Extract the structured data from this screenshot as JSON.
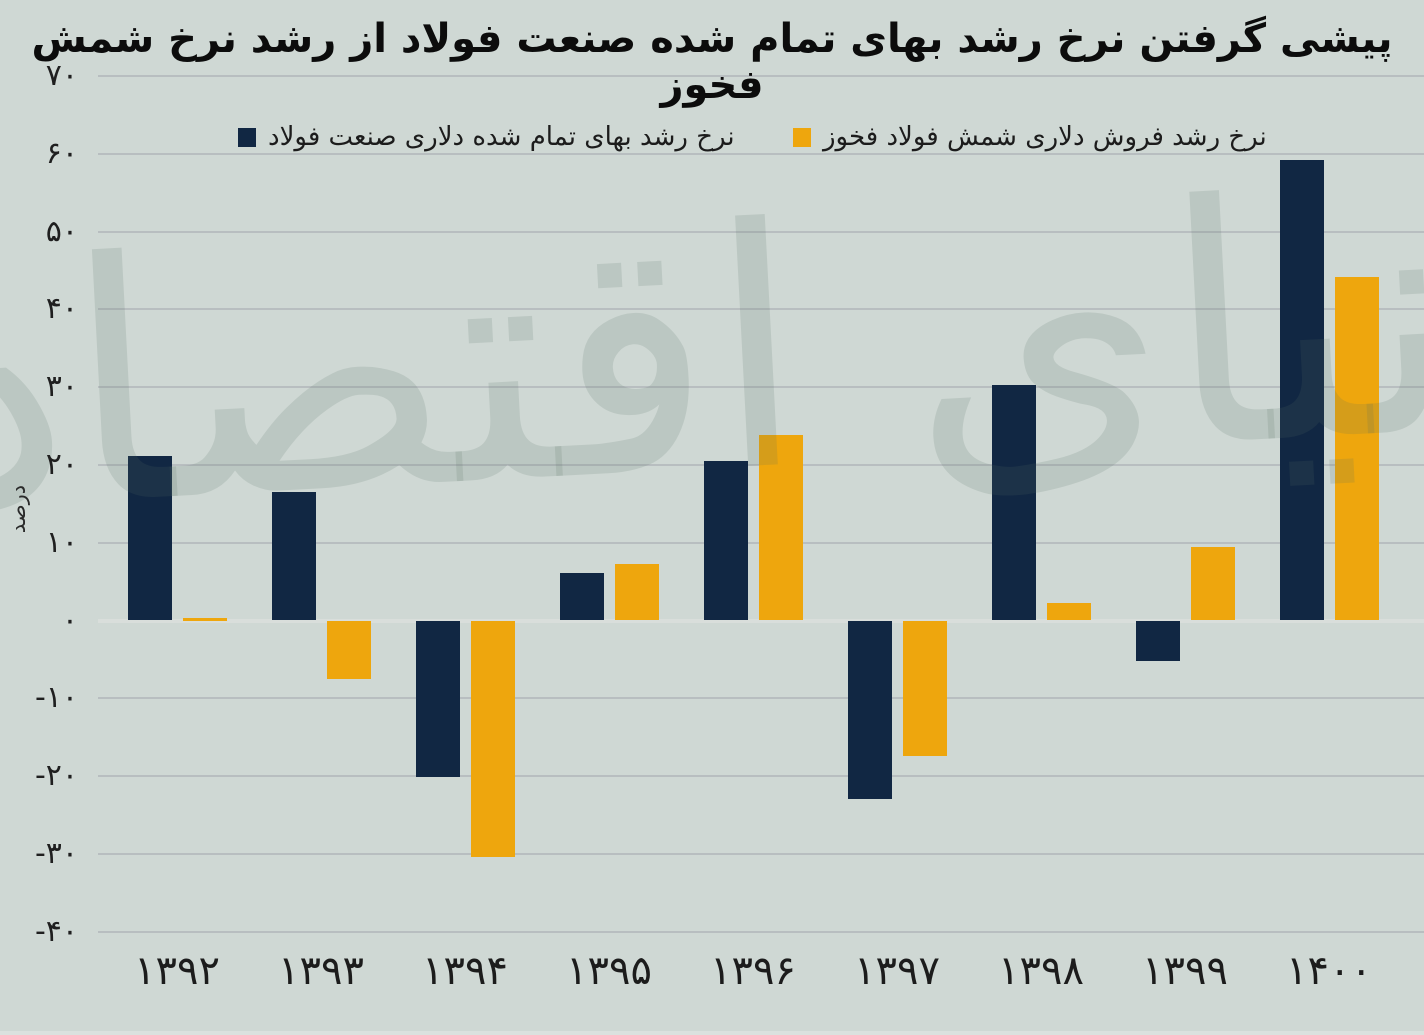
{
  "title": "پیشی گرفتن نرخ رشد بهای تمام شده صنعت فولاد از رشد نرخ شمش فخوز",
  "watermark_text": "دنیای اقتصاد",
  "chart_data": {
    "type": "bar",
    "title": "پیشی گرفتن نرخ رشد بهای تمام شده صنعت فولاد از رشد نرخ شمش فخوز",
    "ylabel": "درصد",
    "ylim": [
      -40,
      70
    ],
    "ytick_step": 10,
    "grid": true,
    "legend_position": "top",
    "categories": [
      "۱۳۹۲",
      "۱۳۹۳",
      "۱۳۹۴",
      "۱۳۹۵",
      "۱۳۹۶",
      "۱۳۹۷",
      "۱۳۹۸",
      "۱۳۹۹",
      "۱۴۰۰"
    ],
    "yticks": [
      {
        "v": 70,
        "label": "۷۰"
      },
      {
        "v": 60,
        "label": "۶۰"
      },
      {
        "v": 50,
        "label": "۵۰"
      },
      {
        "v": 40,
        "label": "۴۰"
      },
      {
        "v": 30,
        "label": "۳۰"
      },
      {
        "v": 20,
        "label": "۲۰"
      },
      {
        "v": 10,
        "label": "۱۰"
      },
      {
        "v": 0,
        "label": "۰"
      },
      {
        "v": -10,
        "label": "-۱۰"
      },
      {
        "v": -20,
        "label": "-۲۰"
      },
      {
        "v": -30,
        "label": "-۳۰"
      },
      {
        "v": -40,
        "label": "-۴۰"
      }
    ],
    "series": [
      {
        "name": "نرخ رشد بهای تمام شده دلاری صنعت فولاد",
        "color": "#112743",
        "values": [
          21.2,
          16.5,
          -20.1,
          6.1,
          20.5,
          -22.9,
          30.3,
          -5.2,
          59.2
        ]
      },
      {
        "name": "نرخ رشد فروش دلاری شمش فولاد فخوز",
        "color": "#eea60d",
        "values": [
          0.3,
          -7.5,
          -30.4,
          7.3,
          23.9,
          -17.4,
          2.2,
          9.5,
          44.2
        ]
      }
    ],
    "colors": {
      "background": "#cfd8d4",
      "gridline": "#b8bec0",
      "zero_line": "#d9dedb",
      "steel_cost_bar": "#112743",
      "fakhooz_bar": "#eea60d"
    }
  }
}
